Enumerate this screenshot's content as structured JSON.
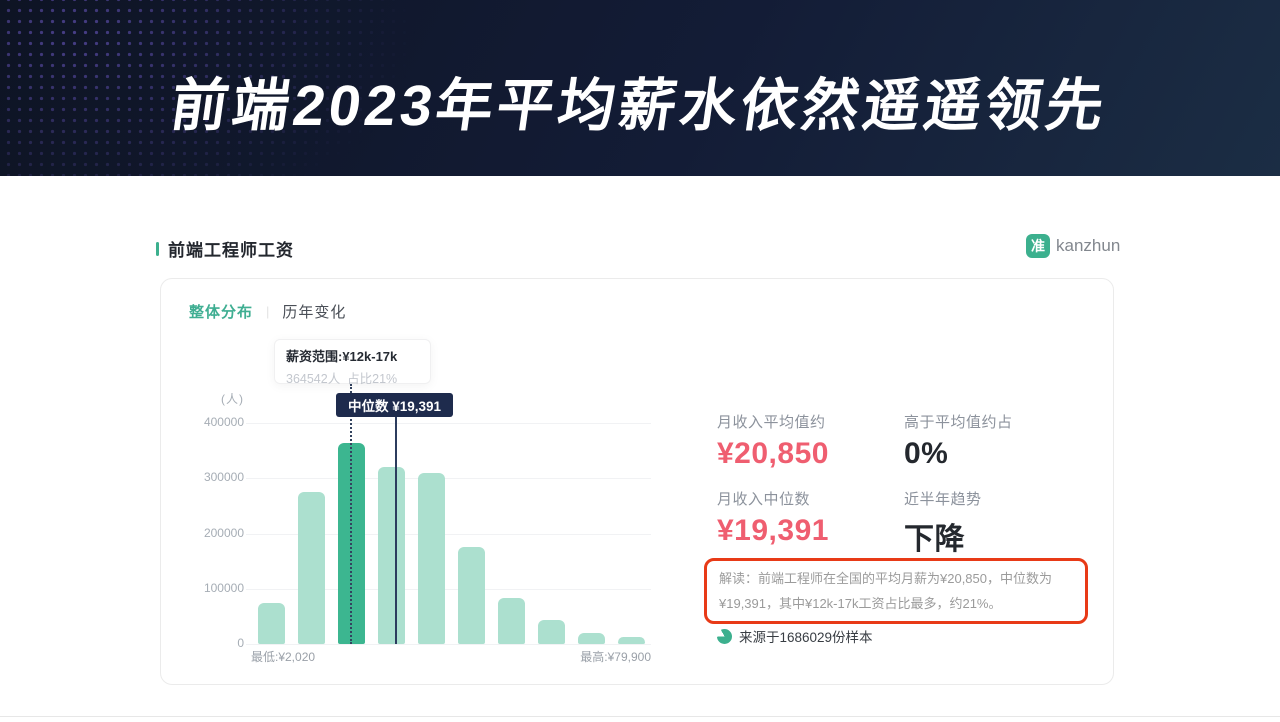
{
  "banner": {
    "title": "前端2023年平均薪水依然遥遥领先"
  },
  "section": {
    "title": "前端工程师工资"
  },
  "logo": {
    "badge": "准",
    "name": "kanzhun"
  },
  "tabs": {
    "overall": "整体分布",
    "divider": "|",
    "history": "历年变化"
  },
  "tooltip": {
    "title": "薪资范围:¥12k-17k",
    "subtitle": "364542人  占比21%"
  },
  "median_tag": {
    "label": "中位数 ¥19,391"
  },
  "chart_data": {
    "type": "bar",
    "title": "前端工程师工资 整体分布",
    "ylabel": "(人)",
    "ylim": [
      0,
      400000
    ],
    "y_ticks": [
      "400000",
      "300000",
      "200000",
      "100000",
      "0"
    ],
    "values": [
      74000,
      276000,
      364542,
      321000,
      310000,
      175000,
      84000,
      44000,
      20000,
      13000
    ],
    "highlight_index": 2,
    "highlight_range": "¥12k-17k",
    "highlight_count": 364542,
    "highlight_share": "21%",
    "median": 19391,
    "x_min_label": "最低:¥2,020",
    "x_max_label": "最高:¥79,900",
    "bar_color": "#ace0cf",
    "bar_highlight_color": "#3cb690",
    "grid": true,
    "legend_position": "none"
  },
  "stats": {
    "avg_label": "月收入平均值约",
    "avg_value": "¥20,850",
    "above_label": "高于平均值约占",
    "above_value": "0%",
    "median_label": "月收入中位数",
    "median_value": "¥19,391",
    "trend_label": "近半年趋势",
    "trend_value": "下降"
  },
  "interpretation": {
    "text": "解读：前端工程师在全国的平均月薪为¥20,850，中位数为¥19,391，其中¥12k-17k工资占比最多，约21%。"
  },
  "source": {
    "text": "来源于1686029份样本"
  },
  "colors": {
    "accent_green": "#3cb08e",
    "pink": "#ef5e70",
    "tag_navy": "#1e2b4d",
    "annotation_red": "#e83a17"
  }
}
